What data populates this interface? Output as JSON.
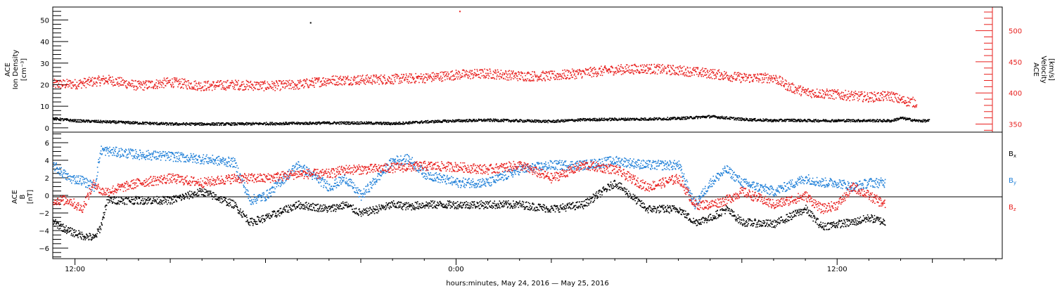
{
  "chart_data": {
    "type": "scatter",
    "xlabel": "hours:minutes, May 24, 2016 — May 25, 2016",
    "x_tick_labels": [
      "12:00",
      "0:00",
      "12:00"
    ],
    "x_range_hours_from_midnight_may24": [
      11.3,
      41.2
    ],
    "x_axis_unit": "hours",
    "panels": [
      {
        "id": "plasma",
        "left_axis": {
          "label_lines": [
            "ACE",
            "Ion Density"
          ],
          "unit": "[cm⁻³]",
          "range": [
            -2,
            56
          ],
          "ticks": [
            "0",
            "10",
            "20",
            "30",
            "40",
            "50"
          ],
          "color": "#000000"
        },
        "right_axis": {
          "label_lines": [
            "ACE",
            "Velocity"
          ],
          "unit": "[km/s]",
          "range": [
            337,
            538
          ],
          "ticks": [
            "350",
            "400",
            "450",
            "500"
          ],
          "color": "#e8201e"
        },
        "series": [
          {
            "axis": "left",
            "color": "#000000",
            "spread": 0.6,
            "x": [
              11.3,
              12,
              13,
              14,
              15,
              16,
              17,
              18,
              19,
              20,
              21,
              22,
              23,
              24,
              25,
              26,
              27,
              28,
              29,
              30,
              31,
              32,
              33,
              34,
              34.5,
              35,
              36,
              37,
              37.7,
              38,
              38.5,
              39,
              40,
              41
            ],
            "y": [
              4.5,
              3.5,
              3,
              2.5,
              2,
              2,
              2,
              2.2,
              2.3,
              2.5,
              2.5,
              2.2,
              3,
              3.5,
              3.8,
              3.5,
              3.2,
              4,
              4.2,
              4.3,
              4.6,
              5.5,
              4.2,
              3.6,
              3.8,
              3.6,
              3.6,
              3.6,
              3.5,
              4.8,
              3.5,
              3.5,
              null,
              null
            ]
          },
          {
            "axis": "right",
            "color": "#e8201e",
            "spread": 8,
            "x": [
              11.3,
              12,
              13,
              14,
              15,
              16,
              17,
              18,
              19,
              20,
              21,
              22,
              23,
              24,
              25,
              26,
              27,
              28,
              29,
              30,
              31,
              32,
              33,
              34,
              34.5,
              35,
              36,
              37,
              37.7,
              38,
              38.5,
              39,
              40,
              41
            ],
            "y": [
              415,
              415,
              422,
              412,
              418,
              412,
              414,
              412,
              414,
              421,
              422,
              423,
              425,
              430,
              432,
              428,
              428,
              433,
              438,
              440,
              437,
              432,
              425,
              425,
              410,
              402,
              398,
              394,
              396,
              389,
              385,
              null,
              null,
              null
            ]
          }
        ],
        "outliers": [
          {
            "x": 19.4,
            "y": 49,
            "axis": "left",
            "color": "#000000"
          },
          {
            "x": 24.1,
            "y": 532,
            "axis": "right",
            "color": "#e8201e"
          }
        ]
      },
      {
        "id": "mag",
        "left_axis": {
          "label_lines": [
            "ACE",
            "B"
          ],
          "unit": "[nT]",
          "range": [
            -7.2,
            7.2
          ],
          "ticks": [
            "−6",
            "−4",
            "−2",
            "0",
            "2",
            "4",
            "6"
          ],
          "color": "#000000"
        },
        "zero_line": 0,
        "legend_position": "right",
        "legend": [
          {
            "label": "B",
            "subscript": "x",
            "color": "#000000"
          },
          {
            "label": "B",
            "subscript": "y",
            "color": "#1e7fd8"
          },
          {
            "label": "B",
            "subscript": "z",
            "color": "#e8201e"
          }
        ],
        "series": [
          {
            "name_index": 0,
            "color": "#000000",
            "spread": 0.45,
            "x": [
              11.3,
              11.8,
              12.2,
              12.6,
              12.8,
              13,
              14,
              15,
              16,
              17,
              17.5,
              18,
              19,
              20,
              20.5,
              21,
              22,
              22.5,
              23,
              24,
              25,
              26,
              27,
              28,
              29,
              30,
              31,
              31.5,
              32,
              32.5,
              33,
              34,
              35,
              35.5,
              36,
              36.5,
              37,
              37.5,
              38,
              38.5,
              39,
              40,
              41
            ],
            "y": [
              -3,
              -4,
              -4.5,
              -4.8,
              -3.5,
              -0.5,
              -0.5,
              -0.5,
              0.5,
              -1,
              -3,
              -2.5,
              -1,
              -1.5,
              -1,
              -2,
              -1,
              -1.2,
              -1,
              -1,
              -1,
              -1,
              -1.5,
              -1,
              1.5,
              -1.5,
              -1.5,
              -3,
              -2.5,
              -1.5,
              -3,
              -3.2,
              -1.5,
              -3.5,
              -3.2,
              -3,
              -2.5,
              -3,
              null,
              null,
              null,
              null,
              null
            ]
          },
          {
            "name_index": 1,
            "color": "#1e7fd8",
            "spread": 0.55,
            "x": [
              11.3,
              11.8,
              12.2,
              12.6,
              12.8,
              13,
              14,
              15,
              16,
              17,
              17.5,
              18,
              19,
              20,
              20.5,
              21,
              22,
              22.5,
              23,
              24,
              25,
              26,
              27,
              28,
              29,
              30,
              31,
              31.5,
              32,
              32.5,
              33,
              34,
              35,
              35.5,
              36,
              36.5,
              37,
              37.5,
              38,
              38.5,
              39,
              40,
              41
            ],
            "y": [
              3.5,
              2,
              1.8,
              1,
              5.2,
              5.1,
              4.7,
              4.5,
              4.2,
              3.8,
              -0.5,
              0,
              3.5,
              1,
              2,
              0,
              4,
              4.2,
              2.5,
              1.5,
              1.5,
              3,
              3.5,
              3.5,
              4,
              3.5,
              3.5,
              -1,
              1.5,
              3,
              1.5,
              0.5,
              2,
              1.5,
              1.5,
              1,
              1.5,
              1.5,
              null,
              null,
              null,
              null,
              null
            ]
          },
          {
            "name_index": 2,
            "color": "#e8201e",
            "spread": 0.55,
            "x": [
              11.3,
              11.8,
              12.2,
              12.6,
              12.8,
              13,
              14,
              15,
              16,
              17,
              17.5,
              18,
              19,
              20,
              20.5,
              21,
              22,
              22.5,
              23,
              24,
              25,
              26,
              27,
              28,
              29,
              30,
              31,
              31.5,
              32,
              32.5,
              33,
              34,
              35,
              35.5,
              36,
              36.5,
              37,
              37.5,
              38,
              38.5,
              39,
              40,
              41
            ],
            "y": [
              -0.5,
              -0.5,
              -1.5,
              1.5,
              0.5,
              0.5,
              1.5,
              2,
              1.5,
              2,
              2,
              2,
              2.5,
              2.5,
              3,
              3,
              3.2,
              3.3,
              3.4,
              3.3,
              3,
              3.5,
              2,
              3.5,
              3,
              1,
              2,
              -1,
              -1,
              -0.5,
              0.5,
              -1,
              0,
              -1.5,
              -1,
              1,
              0,
              -1,
              null,
              null,
              null,
              null,
              null
            ]
          }
        ]
      }
    ]
  }
}
